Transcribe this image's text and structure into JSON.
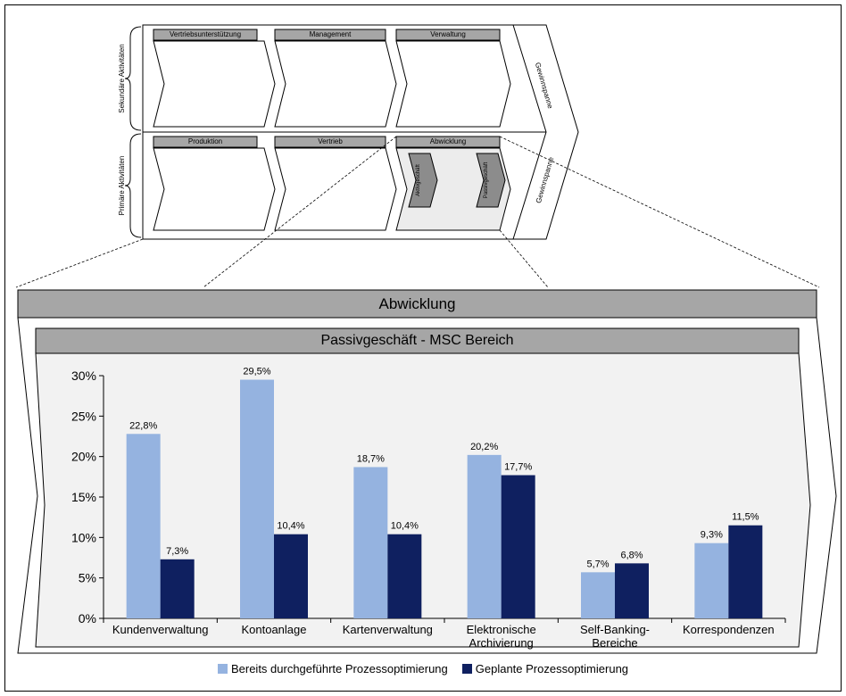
{
  "value_chain": {
    "secondary_label": "Sekundäre Aktivitäten",
    "primary_label": "Primäre Aktivitäten",
    "secondary_activities": [
      "Vertriebsunterstützung",
      "Management",
      "Verwaltung"
    ],
    "primary_activities": [
      "Produktion",
      "Vertrieb",
      "Abwicklung"
    ],
    "margin_label_top": "Gewinnspanne",
    "margin_label_bottom": "Gewinnspanne",
    "sub_process_1": "Aktivgeschäft",
    "sub_process_2": "Passivgeschäft"
  },
  "detail": {
    "section_title": "Abwicklung",
    "chart_title": "Passivgeschäft - MSC Bereich"
  },
  "colors": {
    "series_done": "#95b3e0",
    "series_planned": "#0f2060",
    "header_fill": "#a6a6a6",
    "panel_fill": "#f2f2f2",
    "chip_fill": "#8c8c8c"
  },
  "chart_data": {
    "type": "bar",
    "categories": [
      [
        "Kundenverwaltung"
      ],
      [
        "Kontoanlage"
      ],
      [
        "Kartenverwaltung"
      ],
      [
        "Elektronische",
        "Archivierung"
      ],
      [
        "Self-Banking-",
        "Bereiche"
      ],
      [
        "Korrespondenzen"
      ]
    ],
    "series": [
      {
        "name": "Bereits durchgeführte Prozessoptimierung",
        "values": [
          22.8,
          29.5,
          18.7,
          20.2,
          5.7,
          9.3
        ],
        "labels": [
          "22,8%",
          "29,5%",
          "18,7%",
          "20,2%",
          "5,7%",
          "9,3%"
        ]
      },
      {
        "name": "Geplante Prozessoptimierung",
        "values": [
          7.3,
          10.4,
          10.4,
          17.7,
          6.8,
          11.5
        ],
        "labels": [
          "7,3%",
          "10,4%",
          "10,4%",
          "17,7%",
          "6,8%",
          "11,5%"
        ]
      }
    ],
    "ylim": [
      0,
      30
    ],
    "yticks": [
      "0%",
      "5%",
      "10%",
      "15%",
      "20%",
      "25%",
      "30%"
    ],
    "grid": false,
    "legend_position": "bottom"
  }
}
